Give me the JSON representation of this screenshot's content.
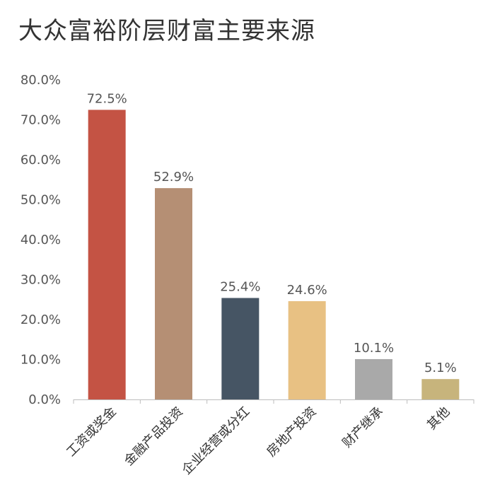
{
  "chart_data": {
    "type": "bar",
    "title": "大众富裕阶层财富主要来源",
    "xlabel": "",
    "ylabel": "",
    "ylim": [
      0,
      80
    ],
    "yticks": [
      "0.0%",
      "10.0%",
      "20.0%",
      "30.0%",
      "40.0%",
      "50.0%",
      "60.0%",
      "70.0%",
      "80.0%"
    ],
    "categories": [
      "工资或奖金",
      "金融产品投资",
      "企业经营或分红",
      "房地产投资",
      "财产继承",
      "其他"
    ],
    "values": [
      72.5,
      52.9,
      25.4,
      24.6,
      10.1,
      5.1
    ],
    "value_labels": [
      "72.5%",
      "52.9%",
      "25.4%",
      "24.6%",
      "10.1%",
      "5.1%"
    ],
    "colors": [
      "#C45344",
      "#B58F74",
      "#465564",
      "#E8C183",
      "#A9A9A9",
      "#C7B47C"
    ],
    "grid": false,
    "legend": "none"
  }
}
